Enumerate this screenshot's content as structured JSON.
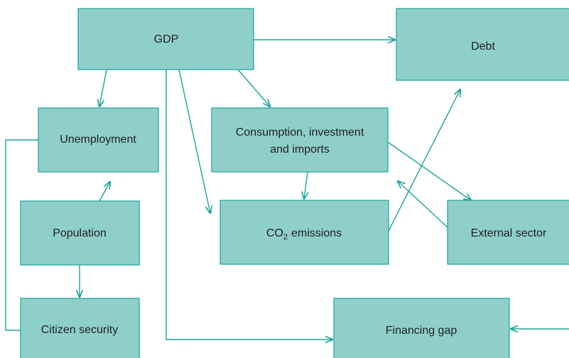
{
  "nodes": [
    {
      "label": "GDP"
    },
    {
      "label": "Debt"
    },
    {
      "label": "Unemployment"
    },
    {
      "lines": [
        "Consumption, investment",
        "and imports"
      ]
    },
    {
      "label": "Population"
    },
    {
      "label": "CO",
      "sub": "2",
      "rest": "emissions"
    },
    {
      "label": "External sector"
    },
    {
      "label": "Citizen security"
    },
    {
      "label": "Financing gap"
    }
  ]
}
